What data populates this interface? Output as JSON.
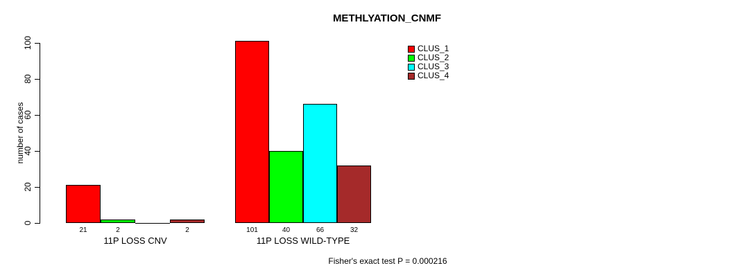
{
  "chart_data": {
    "type": "bar",
    "title": "METHLYATION_CNMF",
    "ylabel": "number of cases",
    "xlabel": "",
    "ylim": [
      0,
      100
    ],
    "yticks": [
      0,
      20,
      40,
      60,
      80,
      100
    ],
    "grid": false,
    "legend_position": "top-right",
    "categories": [
      "11P LOSS CNV",
      "11P LOSS WILD-TYPE"
    ],
    "series": [
      {
        "name": "CLUS_1",
        "color": "#FF0000",
        "values": [
          21,
          101
        ]
      },
      {
        "name": "CLUS_2",
        "color": "#00FF00",
        "values": [
          2,
          40
        ]
      },
      {
        "name": "CLUS_3",
        "color": "#00FFFF",
        "values": [
          0,
          66
        ]
      },
      {
        "name": "CLUS_4",
        "color": "#A52A2A",
        "values": [
          2,
          32
        ]
      }
    ],
    "bar_labels": [
      [
        "21",
        "2",
        "",
        "2"
      ],
      [
        "101",
        "40",
        "66",
        "32"
      ]
    ],
    "annotation": "Fisher's exact test P = 0.000216",
    "axis_color": "#000000",
    "bar_border_color": "#000000"
  }
}
